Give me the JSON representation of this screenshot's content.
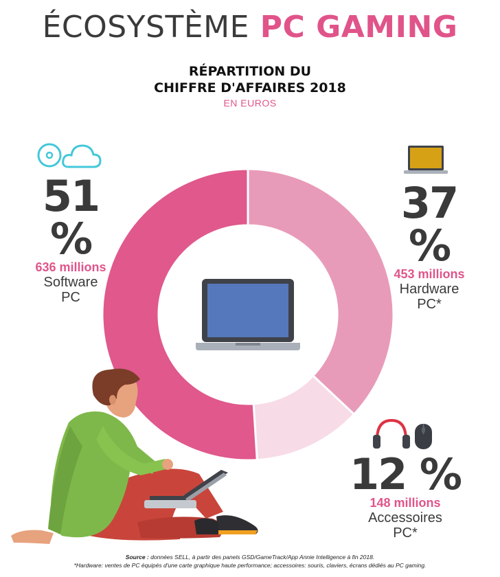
{
  "header": {
    "title_part1": "ÉCOSYSTÈME",
    "title_part2": "PC GAMING",
    "subtitle_line1": "RÉPARTITION DU",
    "subtitle_line2": "CHIFFRE D'AFFAIRES 2018",
    "unit": "EN EUROS"
  },
  "chart_data": {
    "type": "pie",
    "title": "RÉPARTITION DU CHIFFRE D'AFFAIRES 2018",
    "subtitle": "EN EUROS",
    "labels": [
      "Hardware PC*",
      "Accessoires PC*",
      "Software PC"
    ],
    "values": [
      37,
      12,
      51
    ],
    "amounts": [
      "453 millions",
      "148 millions",
      "636 millions"
    ],
    "colors": [
      "#e89bb9",
      "#f7dbe6",
      "#e0588c"
    ]
  },
  "segments": {
    "software": {
      "percent": "51 %",
      "amount": "636 millions",
      "label_line1": "Software",
      "label_line2": "PC"
    },
    "hardware": {
      "percent": "37 %",
      "amount": "453 millions",
      "label_line1": "Hardware",
      "label_line2": "PC*"
    },
    "accessories": {
      "percent": "12 %",
      "amount": "148 millions",
      "label_line1": "Accessoires",
      "label_line2": "PC*"
    }
  },
  "icons": {
    "software": [
      "disc-icon",
      "cloud-icon"
    ],
    "hardware": [
      "laptop-icon"
    ],
    "accessories": [
      "headphones-icon",
      "mouse-icon"
    ],
    "center": "laptop-icon",
    "illustration": "person-with-laptop-illustration"
  },
  "footer": {
    "source_label": "Source :",
    "source_text": "données SELL, à partir des panels GSD/GameTrack/App Annie Intelligence à fin 2018.",
    "note": "*Hardware: ventes de PC équipés d'une carte graphique haute performance; accessoires: souris, claviers, écrans dédiés au PC gaming."
  }
}
